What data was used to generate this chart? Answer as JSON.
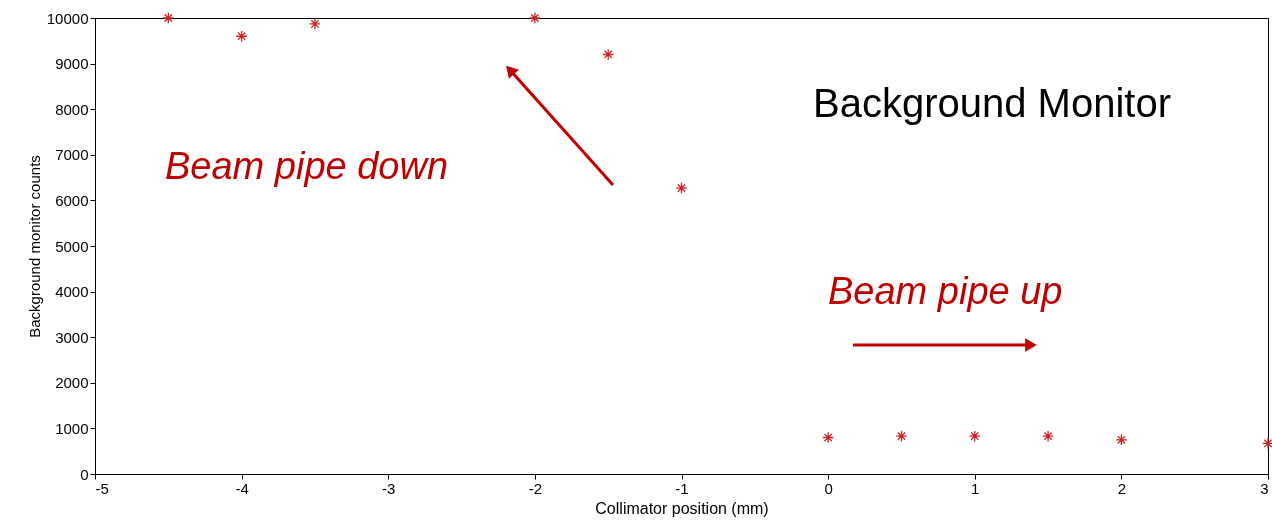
{
  "chart_data": {
    "type": "scatter",
    "xlabel": "Collimator position (mm)",
    "ylabel": "Background monitor counts",
    "annotations": [
      "Background Monitor",
      "Beam pipe down",
      "Beam pipe up"
    ],
    "x": [
      -4.5,
      -4,
      -3.5,
      -2,
      -1.5,
      -1,
      0,
      0.5,
      1,
      1.5,
      2,
      3
    ],
    "series": [
      {
        "color": "#cc2222",
        "values": [
          10000,
          9600,
          9870,
          10000,
          9200,
          6270,
          800,
          830,
          830,
          830,
          750,
          670
        ]
      }
    ],
    "xlim": [
      -5,
      3
    ],
    "xticks": [
      -5,
      -4,
      -3,
      -2,
      -1,
      0,
      1,
      2,
      3
    ],
    "ylim": [
      0,
      10000
    ],
    "yticks": [
      0,
      1000,
      2000,
      3000,
      4000,
      5000,
      6000,
      7000,
      8000,
      9000,
      10000
    ],
    "grid": false,
    "legend": false,
    "marker": "cross"
  }
}
